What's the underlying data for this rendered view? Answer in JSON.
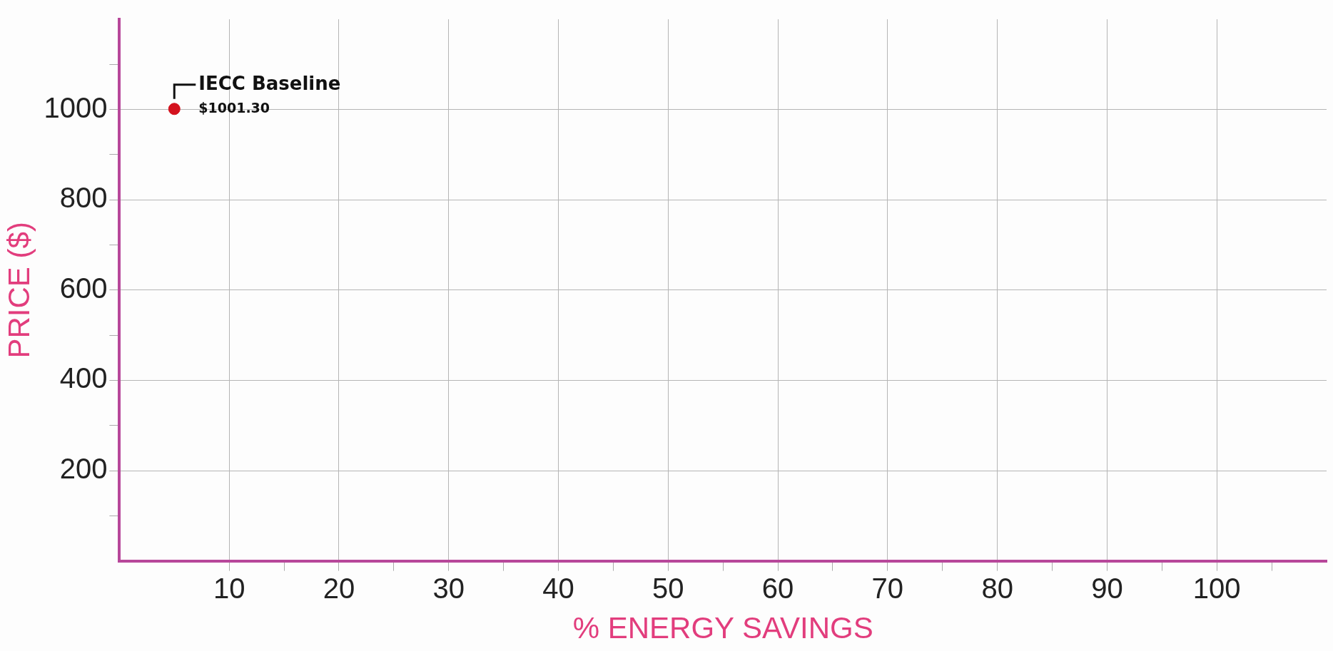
{
  "chart_data": {
    "type": "scatter",
    "xlabel": "% ENERGY SAVINGS",
    "ylabel": "PRICE ($)",
    "x": [
      5
    ],
    "values": [
      1001.3
    ],
    "color": "#d4121e",
    "value_labels": [
      "$1001.30"
    ],
    "annotations": [
      {
        "text": "IECC Baseline",
        "x": 5,
        "y": 1001.3
      }
    ],
    "xlim": [
      0,
      110
    ],
    "ylim": [
      0,
      1200
    ],
    "xticks": [
      10,
      {
        "value": 15,
        "label": null
      },
      20,
      {
        "value": 25,
        "label": null
      },
      30,
      {
        "value": 35,
        "label": null
      },
      40,
      {
        "value": 45,
        "label": null
      },
      50,
      {
        "value": 55,
        "label": null
      },
      60,
      {
        "value": 65,
        "label": null
      },
      70,
      {
        "value": 75,
        "label": null
      },
      80,
      {
        "value": 85,
        "label": null
      },
      90,
      {
        "value": 95,
        "label": null
      },
      100,
      {
        "value": 105,
        "label": null
      }
    ],
    "yticks": [
      {
        "value": 100,
        "label": null
      },
      200,
      {
        "value": 300,
        "label": null
      },
      400,
      {
        "value": 500,
        "label": null
      },
      600,
      {
        "value": 700,
        "label": null
      },
      800,
      {
        "value": 900,
        "label": null
      },
      1000,
      {
        "value": 1100,
        "label": null
      }
    ],
    "grid": true,
    "marker": "circle",
    "legend": false
  }
}
